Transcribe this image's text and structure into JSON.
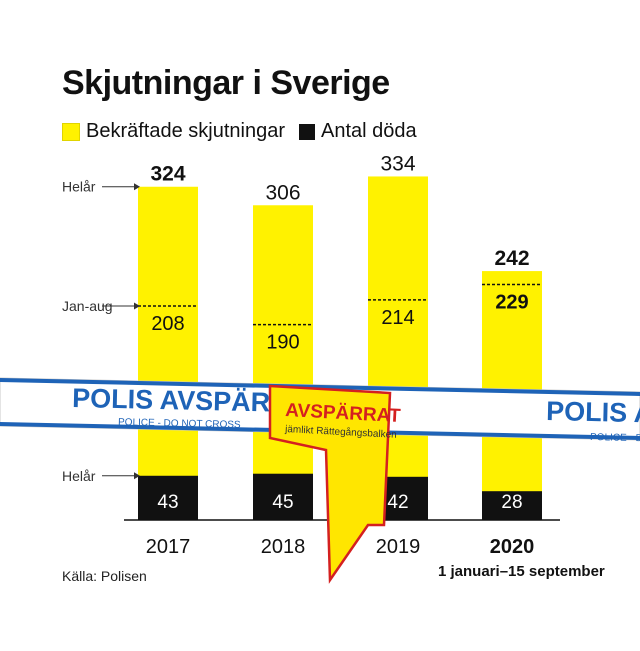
{
  "chart_data": {
    "type": "bar",
    "title": "Skjutningar i Sverige",
    "categories": [
      "2017",
      "2018",
      "2019",
      "2020"
    ],
    "series": [
      {
        "name": "Bekräftade skjutningar",
        "color": "#fff200",
        "values": [
          324,
          306,
          334,
          242
        ]
      },
      {
        "name": "Antal döda",
        "color": "#111111",
        "values": [
          43,
          45,
          42,
          28
        ]
      }
    ],
    "jan_aug_values": [
      208,
      190,
      214,
      229
    ],
    "annotations": {
      "full_year": "Helår",
      "jan_aug": "Jan-aug",
      "full_year_deaths": "Helår"
    },
    "note": "1 januari–15 september",
    "source": "Källa: Polisen",
    "ylim": [
      0,
      350
    ],
    "grid": false,
    "legend_position": "top-left"
  },
  "tape": {
    "blue_text": "POLIS AVSPÄRRAT",
    "blue_subtext": "POLICE - DO NOT CROSS",
    "yellow_title": "AVSPÄRRAT",
    "yellow_subtext": "jämlikt Rättegångsbalken"
  }
}
